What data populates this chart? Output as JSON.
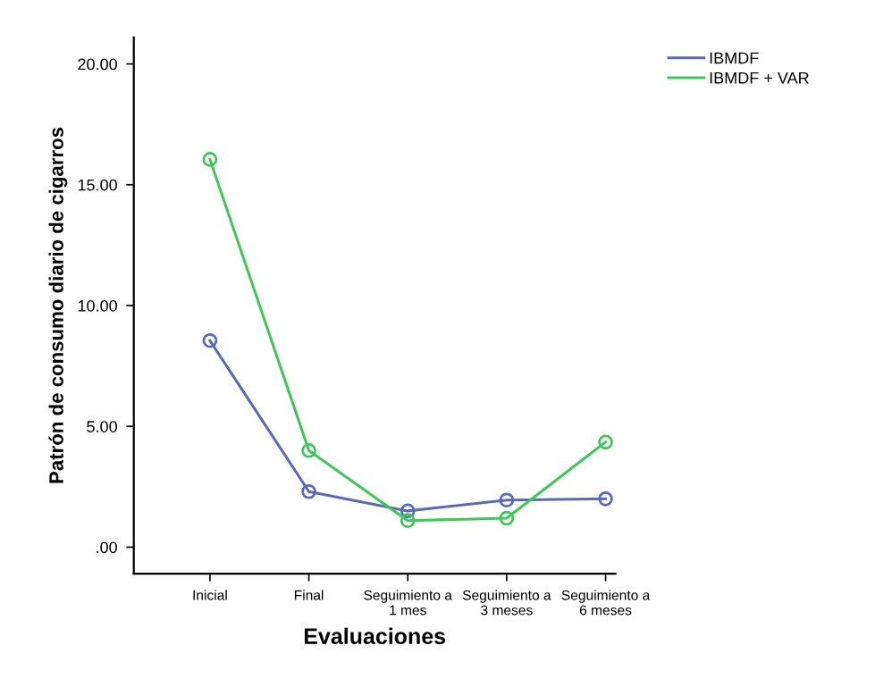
{
  "chart_data": {
    "type": "line",
    "xlabel": "Evaluaciones",
    "ylabel": "Patrón de consumo diario de cigarros",
    "categories": [
      "Inicial",
      "Final",
      "Seguimiento a\n1 mes",
      "Seguimiento a\n3 meses",
      "Seguimiento a\n6 meses"
    ],
    "series": [
      {
        "name": "IBMDF",
        "color": "#5b6ab8",
        "values": [
          8.55,
          2.3,
          1.5,
          1.95,
          2.0
        ]
      },
      {
        "name": "IBMDF + VAR",
        "color": "#3ec85a",
        "values": [
          16.05,
          4.0,
          1.1,
          1.2,
          4.35
        ]
      }
    ],
    "ylim": [
      -1.1,
      21.1
    ],
    "yticks": [
      {
        "value": 0,
        "label": ".00"
      },
      {
        "value": 5,
        "label": "5.00"
      },
      {
        "value": 10,
        "label": "10.00"
      },
      {
        "value": 15,
        "label": "15.00"
      },
      {
        "value": 20,
        "label": "20.00"
      }
    ],
    "marker": "circle",
    "legend": "top right",
    "grid": false
  }
}
